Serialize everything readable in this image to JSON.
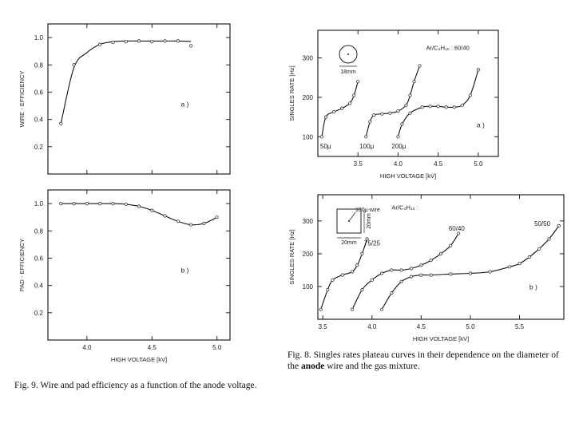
{
  "chart_data": [
    {
      "id": "wire",
      "type": "line",
      "ylabel": "WIRE - EFFICIENCY",
      "panel_label": "a )",
      "xlim": [
        3.7,
        5.1
      ],
      "ylim": [
        0.0,
        1.1
      ],
      "xticks": [
        4.0,
        4.5,
        5.0
      ],
      "yticks": [
        0.2,
        0.4,
        0.6,
        0.8,
        1.0
      ],
      "ytick_labels": [
        "0.2",
        "0.4",
        "0.6",
        "0.8",
        "1.0"
      ],
      "x": [
        3.8,
        3.9,
        4.0,
        4.1,
        4.2,
        4.3,
        4.4,
        4.5,
        4.6,
        4.7,
        4.8
      ],
      "y": [
        0.37,
        0.78,
        0.89,
        0.95,
        0.97,
        0.975,
        0.975,
        0.975,
        0.975,
        0.975,
        0.972
      ],
      "markers": [
        [
          3.8,
          0.37
        ],
        [
          3.9,
          0.8
        ],
        [
          4.1,
          0.95
        ],
        [
          4.2,
          0.965
        ],
        [
          4.3,
          0.97
        ],
        [
          4.4,
          0.975
        ],
        [
          4.5,
          0.97
        ],
        [
          4.6,
          0.975
        ],
        [
          4.7,
          0.975
        ],
        [
          4.8,
          0.94
        ]
      ]
    },
    {
      "id": "pad",
      "type": "line",
      "xlabel": "HIGH VOLTAGE [kV]",
      "ylabel": "PAD - EFFICIENCY",
      "panel_label": "b )",
      "xlim": [
        3.7,
        5.1
      ],
      "ylim": [
        0.0,
        1.1
      ],
      "xticks": [
        4.0,
        4.5,
        5.0
      ],
      "xtick_labels": [
        "4.0",
        "4.5",
        "5.0"
      ],
      "yticks": [
        0.2,
        0.4,
        0.6,
        0.8,
        1.0
      ],
      "ytick_labels": [
        "0.2",
        "0.4",
        "0.6",
        "0.8",
        "1.0"
      ],
      "x": [
        3.8,
        3.9,
        4.0,
        4.1,
        4.2,
        4.3,
        4.4,
        4.5,
        4.6,
        4.7,
        4.8,
        4.9,
        5.0
      ],
      "y": [
        1.0,
        1.0,
        1.0,
        1.0,
        1.0,
        0.995,
        0.98,
        0.95,
        0.91,
        0.87,
        0.845,
        0.855,
        0.9
      ],
      "markers": [
        [
          3.8,
          1.0
        ],
        [
          3.9,
          1.0
        ],
        [
          4.0,
          1.0
        ],
        [
          4.1,
          1.0
        ],
        [
          4.2,
          1.0
        ],
        [
          4.3,
          0.995
        ],
        [
          4.4,
          0.98
        ],
        [
          4.5,
          0.95
        ],
        [
          4.6,
          0.91
        ],
        [
          4.7,
          0.87
        ],
        [
          4.8,
          0.845
        ],
        [
          4.9,
          0.855
        ],
        [
          5.0,
          0.9
        ]
      ]
    },
    {
      "id": "rates_diameter",
      "type": "line",
      "xlabel": "HIGH VOLTAGE [kV]",
      "ylabel": "SINGLES RATE [Hz]",
      "panel_label": "a )",
      "gas_label": "Ar/C₄H₁₀ : 60/40",
      "inset_label": "18mm",
      "xlim": [
        3.0,
        5.25
      ],
      "ylim": [
        50,
        370
      ],
      "xticks": [
        3.5,
        4.0,
        4.5,
        5.0
      ],
      "xtick_labels": [
        "3.5",
        "4.0",
        "4.5",
        "5.0"
      ],
      "yticks": [
        100,
        200,
        300
      ],
      "ytick_labels": [
        "100",
        "200",
        "300"
      ],
      "series": [
        {
          "name": "50μ",
          "x": [
            3.05,
            3.1,
            3.2,
            3.3,
            3.4,
            3.45,
            3.5
          ],
          "y": [
            100,
            150,
            163,
            172,
            185,
            205,
            240
          ]
        },
        {
          "name": "100μ",
          "x": [
            3.6,
            3.65,
            3.7,
            3.8,
            3.9,
            4.0,
            4.1,
            4.15,
            4.2,
            4.27
          ],
          "y": [
            100,
            138,
            155,
            158,
            160,
            165,
            180,
            205,
            240,
            280
          ]
        },
        {
          "name": "200μ",
          "x": [
            4.0,
            4.05,
            4.15,
            4.3,
            4.4,
            4.5,
            4.6,
            4.7,
            4.8,
            4.9,
            5.0
          ],
          "y": [
            100,
            132,
            160,
            175,
            177,
            177,
            175,
            175,
            180,
            205,
            270
          ]
        }
      ]
    },
    {
      "id": "rates_gas",
      "type": "line",
      "xlabel": "HIGH VOLTAGE [kV]",
      "ylabel": "SINGLES RATE [Hz]",
      "panel_label": "b )",
      "gas_label": "Ar/C₄H₁₀ :",
      "inset_wire_label": "100μ-wire",
      "inset_w_label": "20mm",
      "inset_h_label": "20mm",
      "xlim": [
        3.45,
        5.95
      ],
      "ylim": [
        0,
        380
      ],
      "xticks": [
        3.5,
        4.0,
        4.5,
        5.0,
        5.5
      ],
      "xtick_labels": [
        "3.5",
        "4.0",
        "4.5",
        "5.0",
        "5.5"
      ],
      "yticks": [
        100,
        200,
        300
      ],
      "ytick_labels": [
        "100",
        "200",
        "300"
      ],
      "series": [
        {
          "name": "75/25",
          "x": [
            3.48,
            3.55,
            3.6,
            3.7,
            3.8,
            3.85,
            3.9,
            3.95
          ],
          "y": [
            30,
            90,
            120,
            135,
            145,
            165,
            200,
            245
          ]
        },
        {
          "name": "60/40",
          "x": [
            3.8,
            3.9,
            4.0,
            4.1,
            4.2,
            4.3,
            4.4,
            4.5,
            4.6,
            4.7,
            4.8,
            4.88
          ],
          "y": [
            30,
            90,
            120,
            140,
            150,
            150,
            155,
            165,
            180,
            200,
            225,
            262
          ]
        },
        {
          "name": "50/50",
          "x": [
            4.1,
            4.2,
            4.3,
            4.4,
            4.5,
            4.6,
            4.8,
            5.0,
            5.2,
            5.4,
            5.5,
            5.6,
            5.7,
            5.8,
            5.9
          ],
          "y": [
            30,
            80,
            115,
            130,
            135,
            135,
            138,
            140,
            145,
            160,
            170,
            190,
            215,
            245,
            285
          ]
        }
      ]
    }
  ],
  "captions": {
    "fig9": "Fig. 9. Wire and pad efficiency as a function of the anode voltage.",
    "fig8_prefix": "Fig. 8. Singles rates plateau curves in their dependence on the diameter of the",
    "fig8_bold": "anode",
    "fig8_suffix": "wire and the gas mixture."
  }
}
